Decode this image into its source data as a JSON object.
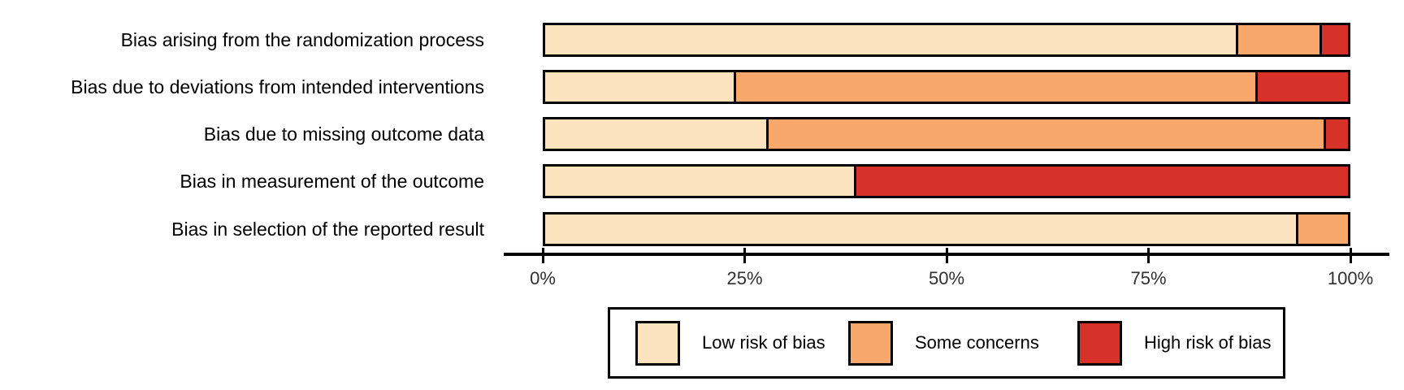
{
  "chart_data": {
    "type": "bar",
    "stacked": true,
    "orientation": "horizontal",
    "title": "",
    "xlabel": "",
    "ylabel": "",
    "categories": [
      "Bias arising from the randomization process",
      "Bias due to deviations from intended interventions",
      "Bias due to missing outcome data",
      "Bias in measurement of the outcome",
      "Bias in selection of the reported result"
    ],
    "series": [
      {
        "name": "Low risk of bias",
        "color": "#FBE3BE",
        "values": [
          86.0,
          23.5,
          27.5,
          38.5,
          93.5
        ]
      },
      {
        "name": "Some concerns",
        "color": "#F9A86B",
        "values": [
          10.5,
          65.0,
          69.5,
          0.0,
          6.5
        ]
      },
      {
        "name": "High risk of bias",
        "color": "#D7322A",
        "values": [
          3.5,
          11.5,
          3.0,
          61.5,
          0.0
        ]
      }
    ],
    "x_axis": {
      "range": [
        0,
        100
      ],
      "tick_values": [
        0,
        25,
        50,
        75,
        100
      ],
      "tick_labels": [
        "0%",
        "25%",
        "50%",
        "75%",
        "100%"
      ]
    },
    "legend": {
      "position": "bottom",
      "entries": [
        {
          "label": "Low risk of bias",
          "color": "#FBE3BE"
        },
        {
          "label": "Some concerns",
          "color": "#F9A86B"
        },
        {
          "label": "High risk of bias",
          "color": "#D7322A"
        }
      ]
    },
    "grid": false,
    "bar_border_color": "#000000"
  }
}
